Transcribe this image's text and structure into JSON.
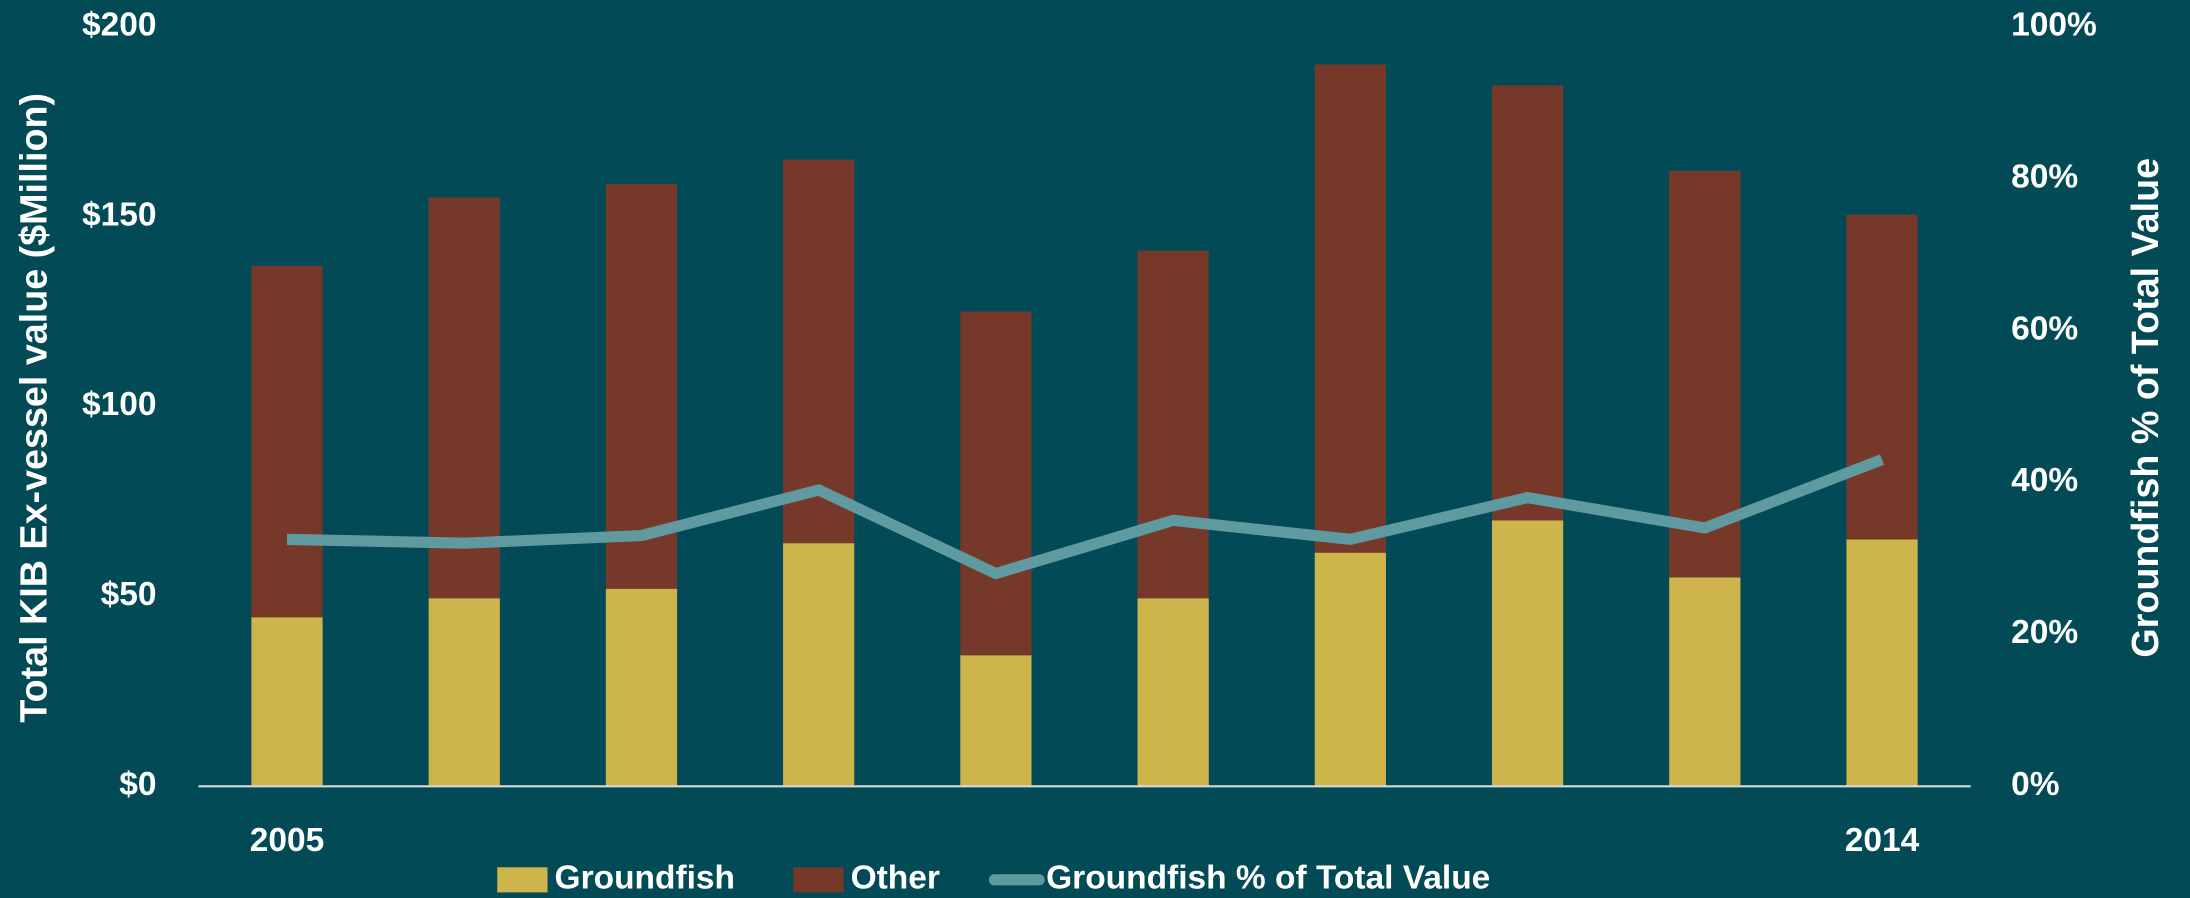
{
  "chart_data": {
    "type": "bar",
    "categories": [
      "2005",
      null,
      null,
      null,
      null,
      null,
      null,
      null,
      null,
      "2014"
    ],
    "series": [
      {
        "name": "Groundfish",
        "color": "#cdb54b",
        "values": [
          44.5,
          49.5,
          52,
          64,
          34.5,
          49.5,
          61.5,
          70,
          55,
          65
        ]
      },
      {
        "name": "Other",
        "color": "#763828",
        "values": [
          92.5,
          105.5,
          106.5,
          101,
          90.5,
          91.5,
          128.5,
          114.5,
          107,
          85.5
        ]
      },
      {
        "name": "Groundfish % of Total Value",
        "color": "#5f9aa0",
        "type": "line",
        "axis": "y2",
        "values": [
          32.5,
          32,
          33,
          39,
          28,
          35,
          32.5,
          38,
          34,
          43
        ]
      }
    ],
    "stacked": true,
    "y_label": "Total KIB Ex-vessel value ($Million)",
    "y2_label": "Groundfish % of Total Value",
    "ylim": [
      0,
      200
    ],
    "yticks": [
      {
        "value": 0,
        "label": "$0"
      },
      {
        "value": 50,
        "label": "$50"
      },
      {
        "value": 100,
        "label": "$100"
      },
      {
        "value": 150,
        "label": "$150"
      },
      {
        "value": 200,
        "label": "$200"
      }
    ],
    "y2lim": [
      0,
      100
    ],
    "y2ticks": [
      {
        "value": 0,
        "label": "0%"
      },
      {
        "value": 20,
        "label": "20%"
      },
      {
        "value": 40,
        "label": "40%"
      },
      {
        "value": 60,
        "label": "60%"
      },
      {
        "value": 80,
        "label": "80%"
      },
      {
        "value": 100,
        "label": "100%"
      }
    ],
    "grid": false,
    "legend": "bottom"
  }
}
